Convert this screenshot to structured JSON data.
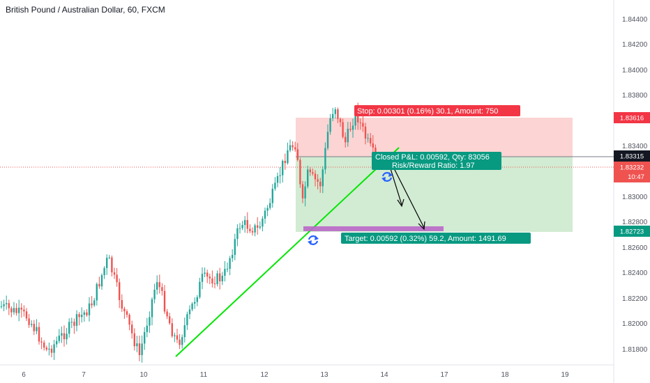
{
  "title": "British Pound / Australian Dollar, 60, FXCM",
  "price_axis": {
    "ticks": [
      "1.84400",
      "1.84200",
      "1.84000",
      "1.83800",
      "1.83400",
      "1.83000",
      "1.82800",
      "1.82600",
      "1.82400",
      "1.82200",
      "1.82000",
      "1.81800"
    ]
  },
  "time_axis": {
    "ticks": [
      "6",
      "7",
      "10",
      "11",
      "12",
      "13",
      "14",
      "17",
      "18",
      "19"
    ]
  },
  "badges": {
    "stop_price": "1.83616",
    "position_price": "1.83315",
    "current_price": "1.83232",
    "countdown": "10:47",
    "target_price": "1.82723"
  },
  "position": {
    "stop_label": "Stop: 0.00301 (0.16%) 30.1, Amount: 750",
    "closed_pnl_label": "Closed P&L: 0.00592, Qty: 83056",
    "risk_reward_label": "Risk/Reward Ratio: 1.97",
    "target_label": "Target: 0.00592 (0.32%) 59.2, Amount: 1491.69"
  },
  "colors": {
    "up_candle": "#26a69a",
    "down_candle": "#ef5350",
    "stop_zone": "#ef5350",
    "target_zone": "#4caf50",
    "trend_line": "#00e600",
    "label_red": "#f23645",
    "label_green": "#089981",
    "rotate_icon": "#2962ff"
  },
  "icons": [
    "rotate-icon",
    "rotate-icon"
  ]
}
